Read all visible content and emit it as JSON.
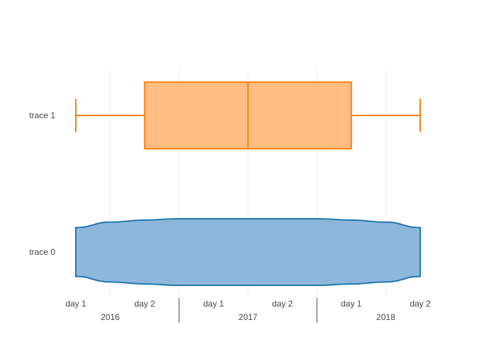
{
  "chart_data": {
    "type": "box",
    "orientation": "horizontal",
    "x_axis": {
      "type": "multicategory",
      "ticks": [
        {
          "label": "day 1",
          "group": "2016"
        },
        {
          "label": "day 2",
          "group": "2016"
        },
        {
          "label": "day 1",
          "group": "2017"
        },
        {
          "label": "day 2",
          "group": "2017"
        },
        {
          "label": "day 1",
          "group": "2018"
        },
        {
          "label": "day 2",
          "group": "2018"
        }
      ],
      "groups": [
        "2016",
        "2017",
        "2018"
      ],
      "grid": true
    },
    "y_axis": {
      "type": "category",
      "categories": [
        "trace 0",
        "trace 1"
      ]
    },
    "series": [
      {
        "name": "trace 0",
        "kind": "violin",
        "color": "#1f77b4",
        "fill": "#8eb8db",
        "x_range": [
          0,
          5
        ],
        "half_width_profile": [
          [
            0,
            0.36
          ],
          [
            0.5,
            0.44
          ],
          [
            1,
            0.47
          ],
          [
            1.5,
            0.49
          ],
          [
            2,
            0.49
          ],
          [
            2.5,
            0.49
          ],
          [
            3,
            0.49
          ],
          [
            3.5,
            0.49
          ],
          [
            4,
            0.47
          ],
          [
            4.5,
            0.44
          ],
          [
            5,
            0.36
          ]
        ]
      },
      {
        "name": "trace 1",
        "kind": "box",
        "color": "#ff7f0e",
        "fill": "#ffbd84",
        "min": 0,
        "q1": 1,
        "median": 2.5,
        "q3": 4,
        "max": 5
      }
    ]
  }
}
